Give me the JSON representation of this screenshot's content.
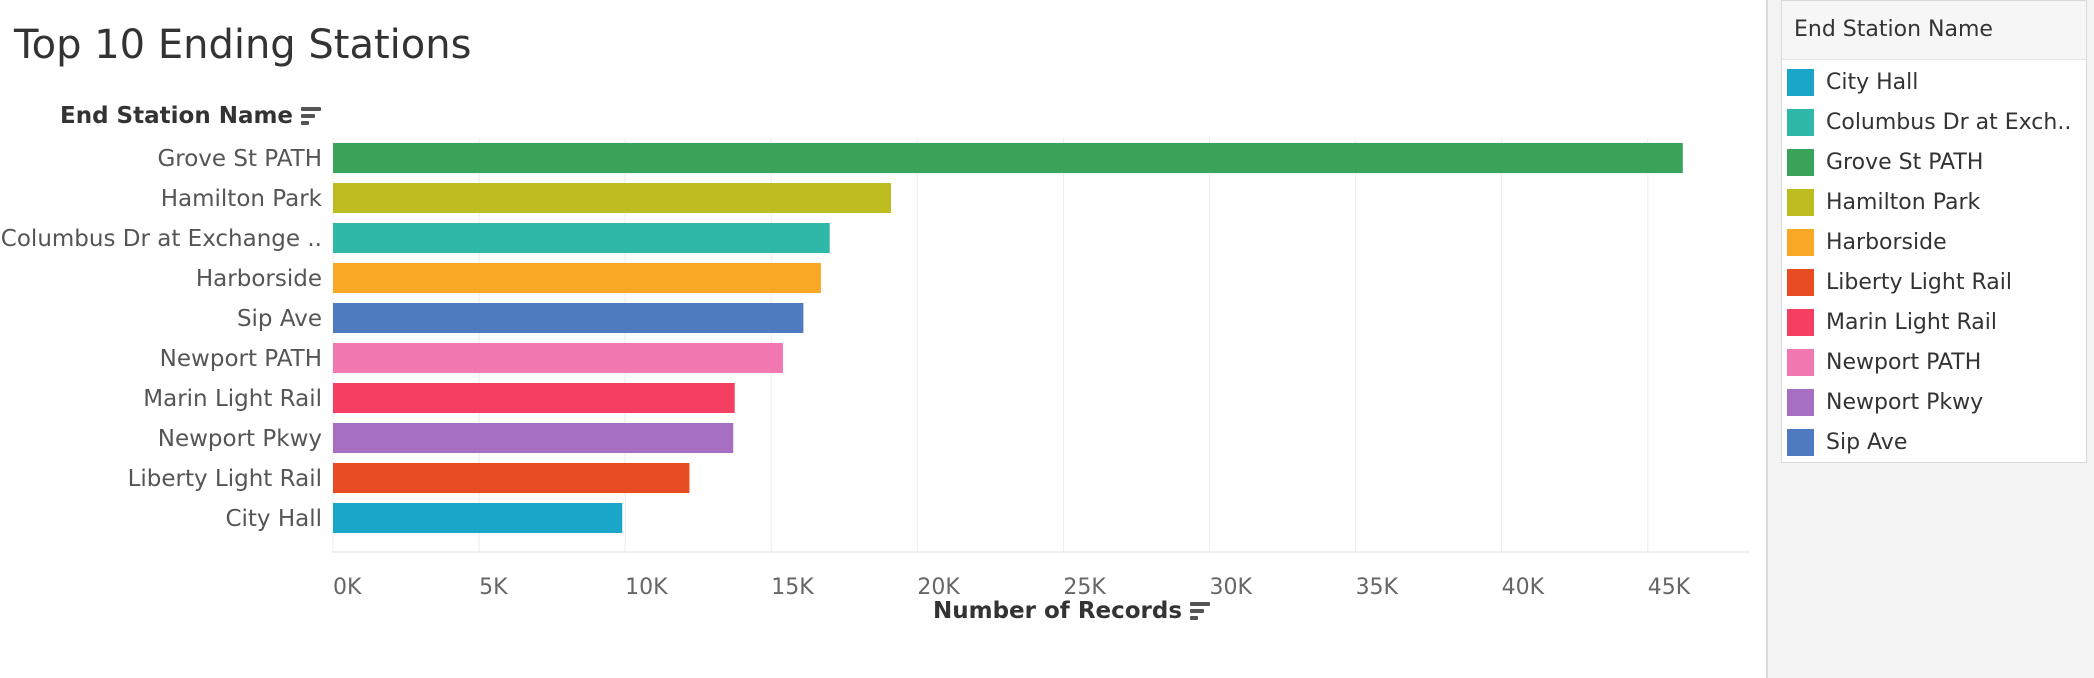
{
  "chart_data": {
    "type": "bar",
    "orientation": "horizontal",
    "title": "Top 10 Ending Stations",
    "ylabel": "End Station Name",
    "xlabel": "Number of Records",
    "categories": [
      "Grove St PATH",
      "Hamilton Park",
      "Columbus Dr at Exchange ..",
      "Harborside",
      "Sip Ave",
      "Newport PATH",
      "Marin Light Rail",
      "Newport Pkwy",
      "Liberty Light Rail",
      "City Hall"
    ],
    "values": [
      46200,
      19100,
      17000,
      16700,
      16100,
      15400,
      13750,
      13700,
      12200,
      9900
    ],
    "colors": [
      "#3aa35a",
      "#bdbd22",
      "#2fb8a8",
      "#f9a825",
      "#4e7bbf",
      "#f178b0",
      "#f43f63",
      "#a66fc4",
      "#e84c22",
      "#1aa6c8"
    ],
    "xlim": [
      0,
      48500
    ],
    "xticks": [
      0,
      5000,
      10000,
      15000,
      20000,
      25000,
      30000,
      35000,
      40000,
      45000
    ],
    "xtick_labels": [
      "0K",
      "5K",
      "10K",
      "15K",
      "20K",
      "25K",
      "30K",
      "35K",
      "40K",
      "45K"
    ],
    "grid": true,
    "legend_position": "right"
  },
  "legend": {
    "title": "End Station Name",
    "items": [
      {
        "label": "City Hall",
        "color": "#1aa6c8"
      },
      {
        "label": "Columbus Dr at Exch..",
        "color": "#2fb8a8"
      },
      {
        "label": "Grove St PATH",
        "color": "#3aa35a"
      },
      {
        "label": "Hamilton Park",
        "color": "#bdbd22"
      },
      {
        "label": "Harborside",
        "color": "#f9a825"
      },
      {
        "label": "Liberty Light Rail",
        "color": "#e84c22"
      },
      {
        "label": "Marin Light Rail",
        "color": "#f43f63"
      },
      {
        "label": "Newport PATH",
        "color": "#f178b0"
      },
      {
        "label": "Newport Pkwy",
        "color": "#a66fc4"
      },
      {
        "label": "Sip Ave",
        "color": "#4e7bbf"
      }
    ]
  }
}
